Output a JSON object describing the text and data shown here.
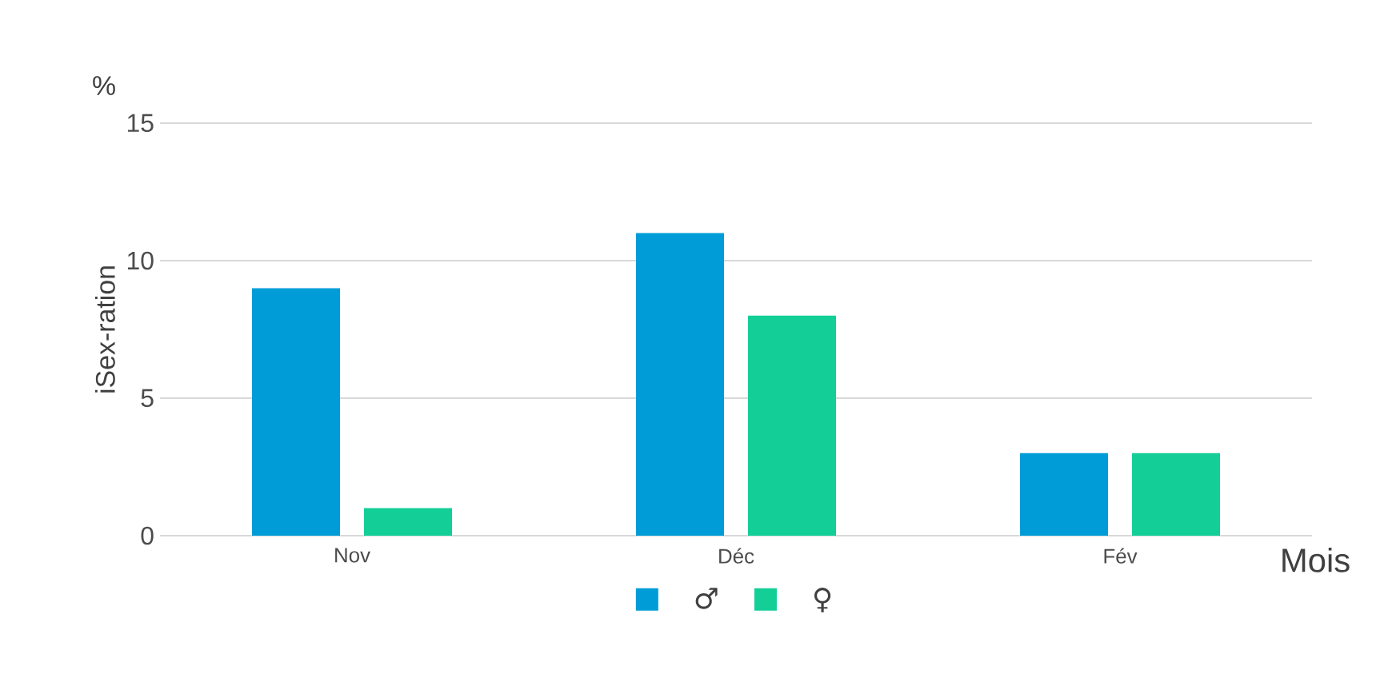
{
  "chart_data": {
    "type": "bar",
    "categories": [
      "Nov",
      "Déc",
      "Fév"
    ],
    "series": [
      {
        "name": "♂",
        "color": "#009cd8",
        "values": [
          9,
          11,
          3
        ]
      },
      {
        "name": "♀",
        "color": "#13cf97",
        "values": [
          1,
          8,
          3
        ]
      }
    ],
    "ylim": [
      0,
      15
    ],
    "yticks": [
      0,
      5,
      10,
      15
    ],
    "ylabel": "iSex-ration",
    "xlabel": "Mois",
    "annotations": [
      "%"
    ],
    "grid": "y",
    "legend": "bottom"
  }
}
